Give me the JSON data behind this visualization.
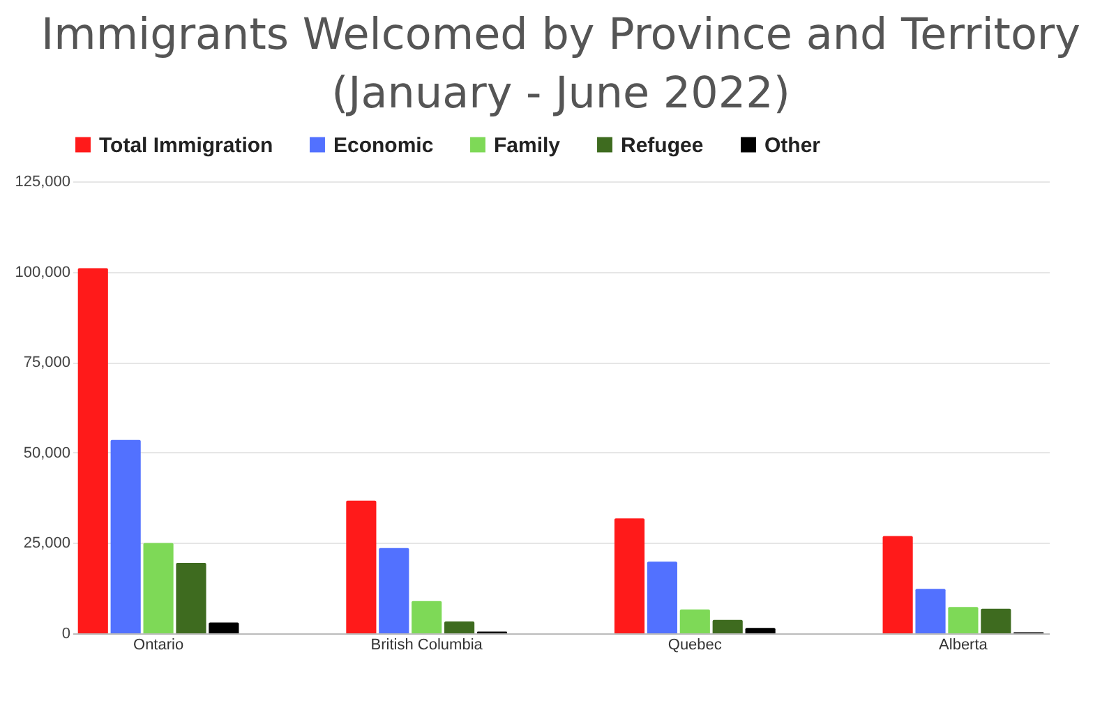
{
  "chart_data": {
    "type": "bar",
    "title": "Immigrants Welcomed by Province and Territory\n(January - June 2022)",
    "categories": [
      "Ontario",
      "British Columbia",
      "Quebec",
      "Alberta"
    ],
    "series": [
      {
        "name": "Total Immigration",
        "color": "#ff1a1a",
        "values": [
          101000,
          36700,
          31800,
          26900
        ]
      },
      {
        "name": "Economic",
        "color": "#5271ff",
        "values": [
          53500,
          23600,
          19800,
          12300
        ]
      },
      {
        "name": "Family",
        "color": "#7ed957",
        "values": [
          25000,
          8900,
          6600,
          7300
        ]
      },
      {
        "name": "Refugee",
        "color": "#3e6b1f",
        "values": [
          19500,
          3300,
          3700,
          6800
        ]
      },
      {
        "name": "Other",
        "color": "#000000",
        "values": [
          3000,
          500,
          1500,
          300
        ]
      }
    ],
    "ylim": [
      0,
      125000
    ],
    "yticks": [
      0,
      {
        "value": 25000,
        "label": "25,000"
      },
      {
        "value": 50000,
        "label": "50,000"
      },
      {
        "value": 75000,
        "label": "75,000"
      },
      {
        "value": 100000,
        "label": "100,000"
      },
      {
        "value": 125000,
        "label": "125,000"
      }
    ],
    "grid": "y",
    "legend": "top"
  }
}
